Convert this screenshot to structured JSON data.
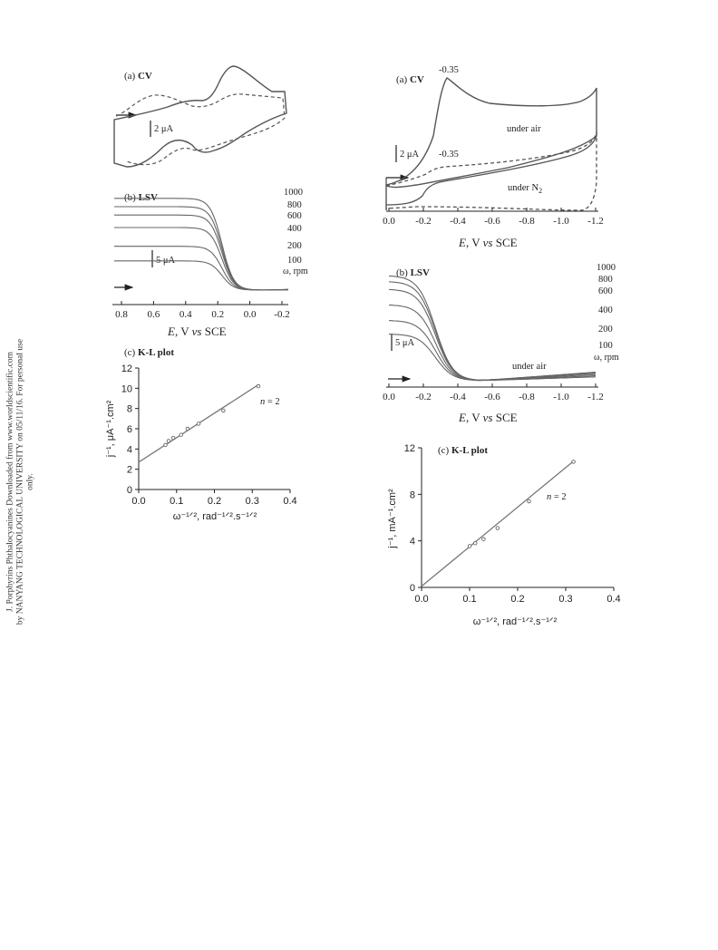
{
  "side_note": {
    "line1": "J. Porphyrins Phthalocyanines Downloaded from www.worldscientific.com",
    "line2": "by NANYANG TECHNOLOGICAL UNIVERSITY on 05/11/16. For personal use only."
  },
  "left": {
    "cv": {
      "panel_prefix": "(a) ",
      "panel_bold": "CV",
      "scale_label": "2 μA"
    },
    "lsv": {
      "panel_prefix": "(b) ",
      "panel_bold": "LSV",
      "scale_label": "5 μA",
      "curve_labels": [
        "1000",
        "800",
        "600",
        "400",
        "200",
        "100"
      ],
      "omega_label": "ω, rpm",
      "x_ticks": [
        "0.8",
        "0.6",
        "0.4",
        "0.2",
        "0.0",
        "-0.2"
      ],
      "xlabel_E": "E",
      "xlabel_rest": ", V ",
      "xlabel_vs": "vs",
      "xlabel_end": " SCE"
    },
    "kl": {
      "panel_prefix": "(c) ",
      "panel_bold": "K-L plot",
      "n_italic": "n",
      "n_rest": " = 2",
      "ylabel": "j⁻¹, μA⁻¹.cm²",
      "xlabel": "ω⁻¹ᐟ², rad⁻¹ᐟ².s⁻¹ᐟ²",
      "x_ticks": [
        "0.0",
        "0.1",
        "0.2",
        "0.3",
        "0.4"
      ],
      "y_ticks": [
        "0",
        "2",
        "4",
        "6",
        "8",
        "10",
        "12"
      ]
    }
  },
  "right": {
    "cv": {
      "panel_prefix": "(a) ",
      "panel_bold": "CV",
      "peak_air": "-0.35",
      "peak_n2": "-0.35",
      "scale_label": "2 μA",
      "label_air": "under air",
      "label_n2": "under N",
      "label_n2_sub": "2",
      "x_ticks": [
        "0.0",
        "-0.2",
        "-0.4",
        "-0.6",
        "-0.8",
        "-1.0",
        "-1.2"
      ],
      "xlabel_E": "E",
      "xlabel_rest": ", V ",
      "xlabel_vs": "vs",
      "xlabel_end": " SCE"
    },
    "lsv": {
      "panel_prefix": "(b) ",
      "panel_bold": "LSV",
      "scale_label": "5 μA",
      "curve_labels": [
        "1000",
        "800",
        "600",
        "400",
        "200",
        "100"
      ],
      "omega_label": "ω, rpm",
      "label_air": "under air",
      "x_ticks": [
        "0.0",
        "-0.2",
        "-0.4",
        "-0.6",
        "-0.8",
        "-1.0",
        "-1.2"
      ],
      "xlabel_E": "E",
      "xlabel_rest": ", V ",
      "xlabel_vs": "vs",
      "xlabel_end": " SCE"
    },
    "kl": {
      "panel_prefix": "(c) ",
      "panel_bold": "K-L plot",
      "n_italic": "n",
      "n_rest": " = 2",
      "ylabel": "j⁻¹, mA⁻¹.cm²",
      "xlabel": "ω⁻¹ᐟ², rad⁻¹ᐟ².s⁻¹ᐟ²",
      "x_ticks": [
        "0.0",
        "0.1",
        "0.2",
        "0.3",
        "0.4"
      ],
      "y_ticks": [
        "0",
        "4",
        "8",
        "12"
      ]
    }
  },
  "chart_data": [
    {
      "type": "line",
      "panel": "left (a) CV",
      "series": [
        {
          "style": "solid",
          "cathodic_peak_E_approx": -0.1
        },
        {
          "style": "dashed"
        }
      ]
    },
    {
      "type": "line",
      "panel": "left (b) LSV",
      "x_ticks": [
        0.8,
        0.6,
        0.4,
        0.2,
        0.0,
        -0.2
      ],
      "xlim": [
        0.85,
        -0.2
      ],
      "series": [
        {
          "name": "1000",
          "limiting_current_uA_approx": 22
        },
        {
          "name": "800",
          "limiting_current_uA_approx": 20
        },
        {
          "name": "600",
          "limiting_current_uA_approx": 18
        },
        {
          "name": "400",
          "limiting_current_uA_approx": 15
        },
        {
          "name": "200",
          "limiting_current_uA_approx": 10.5
        },
        {
          "name": "100",
          "limiting_current_uA_approx": 7
        }
      ],
      "onset_E": 0.25
    },
    {
      "type": "scatter",
      "panel": "left (c) K-L plot",
      "xlim": [
        0,
        0.4
      ],
      "ylim": [
        0,
        12
      ],
      "x": [
        0.0707,
        0.0791,
        0.0913,
        0.1118,
        0.1291,
        0.1581,
        0.2236,
        0.3162
      ],
      "y": [
        4.4,
        4.8,
        5.1,
        5.4,
        6.0,
        6.5,
        7.8,
        10.2
      ],
      "fit": {
        "intercept": 2.7,
        "slope": 24.2
      }
    },
    {
      "type": "line",
      "panel": "right (a) CV",
      "xlim": [
        0.0,
        -1.2
      ],
      "series": [
        {
          "name": "under air",
          "peak_E": -0.35
        },
        {
          "name": "under N2",
          "peak_E": -0.35
        }
      ]
    },
    {
      "type": "line",
      "panel": "right (b) LSV",
      "xlim": [
        0.0,
        -1.2
      ],
      "series": [
        {
          "name": "1000",
          "limiting_current_uA_approx": 27
        },
        {
          "name": "800",
          "limiting_current_uA_approx": 25.5
        },
        {
          "name": "600",
          "limiting_current_uA_approx": 23.5
        },
        {
          "name": "400",
          "limiting_current_uA_approx": 19.5
        },
        {
          "name": "200",
          "limiting_current_uA_approx": 15.5
        },
        {
          "name": "100",
          "limiting_current_uA_approx": 12
        }
      ]
    },
    {
      "type": "scatter",
      "panel": "right (c) K-L plot",
      "xlim": [
        0,
        0.4
      ],
      "ylim": [
        0,
        12
      ],
      "x": [
        0.1,
        0.1118,
        0.1291,
        0.1581,
        0.2236,
        0.3162
      ],
      "y": [
        3.55,
        3.8,
        4.15,
        5.1,
        7.4,
        10.8
      ],
      "fit": {
        "intercept": 0.1,
        "slope": 34.0
      }
    }
  ]
}
